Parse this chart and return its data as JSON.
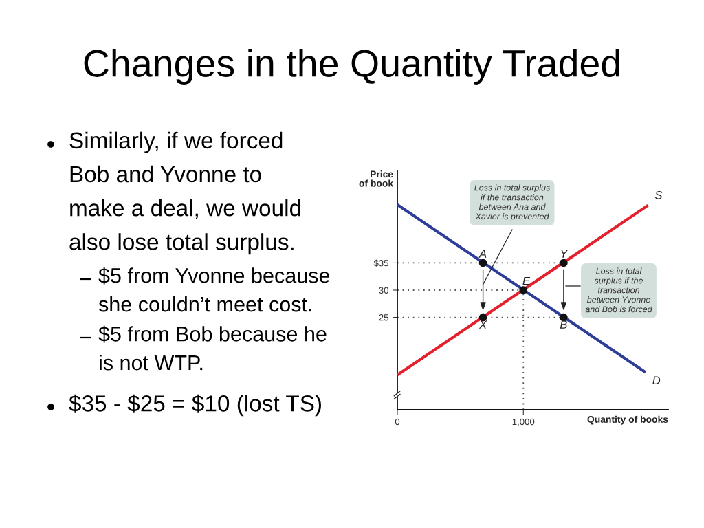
{
  "chart_data": {
    "type": "line",
    "title": "Changes in the Quantity Traded",
    "xlabel": "Quantity of books",
    "ylabel": "Price\nof book",
    "xlim": [
      0,
      2150
    ],
    "ylim": [
      8,
      52
    ],
    "xticks": [
      0,
      {
        "value": 1000,
        "label": "1,000"
      }
    ],
    "yticks": [
      25,
      30,
      {
        "value": 35,
        "label": "$35"
      }
    ],
    "series": [
      {
        "name": "D",
        "color": "#2e3d98",
        "x": [
          0,
          1970
        ],
        "values": [
          45.7,
          14.9
        ]
      },
      {
        "name": "S",
        "color": "#e3202c",
        "x": [
          0,
          1990
        ],
        "values": [
          14.4,
          45.6
        ]
      },
      {
        "color": "#555555",
        "line_style": "dotted",
        "x": [
          0,
          1320
        ],
        "values": [
          35,
          35
        ]
      },
      {
        "color": "#555555",
        "line_style": "dotted",
        "x": [
          0,
          1000
        ],
        "values": [
          30,
          30
        ]
      },
      {
        "color": "#555555",
        "line_style": "dotted",
        "x": [
          0,
          1320
        ],
        "values": [
          25,
          25
        ]
      },
      {
        "color": "#555555",
        "line_style": "dotted",
        "x": [
          1000,
          1000
        ],
        "values": [
          8,
          30
        ]
      },
      {
        "type": "scatter",
        "color": "#111111",
        "marker": "circle",
        "x": [
          680,
          1000,
          1320,
          680,
          1320
        ],
        "values": [
          35,
          30,
          35,
          25,
          25
        ]
      }
    ],
    "annotations": [
      "Similarly, if we forced\nBob and Yvonne to\nmake a deal, we would\nalso lose total surplus.",
      "$5 from Yvonne because\nshe couldn’t meet cost.",
      "$5 from Bob because he\nis not WTP.",
      "$35 - $25 = $10 (lost TS)",
      "Loss in total surplus\nif the transaction\nbetween Ana and\nXavier is prevented",
      "Loss in total\nsurplus if the\ntransaction\nbetween Yvonne\nand Bob is forced",
      {
        "text": "A",
        "x": 680,
        "y": 35
      },
      {
        "text": "E",
        "x": 1000,
        "y": 30
      },
      {
        "text": "Y",
        "x": 1320,
        "y": 35
      },
      {
        "text": "X",
        "x": 680,
        "y": 25
      },
      {
        "text": "B",
        "x": 1320,
        "y": 25
      }
    ]
  }
}
